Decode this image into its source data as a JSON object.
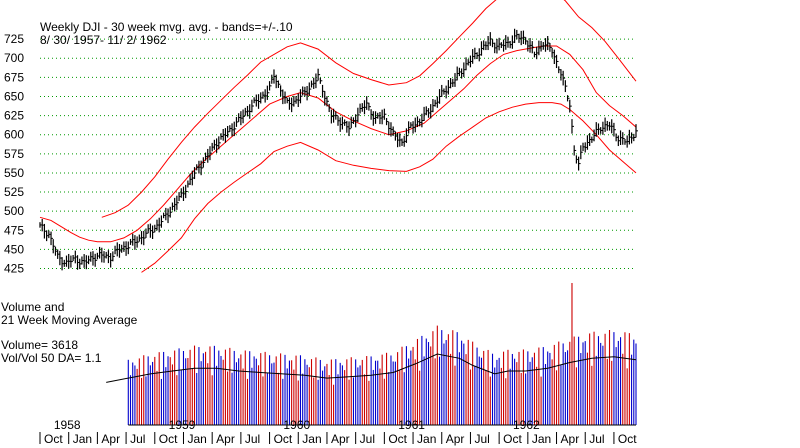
{
  "title": {
    "line1": "Weekly DJI - 30 week mvg. avg. - bands=+/-.10",
    "line2": "8/ 30/ 1957- 11/ 2/ 1962"
  },
  "volume_panel": {
    "label1": "Volume and",
    "label2": "21 Week Moving Average",
    "volume_text": "Volume= 3618",
    "ratio_text": "Vol/Vol 50 DA= 1.1"
  },
  "colors": {
    "price_bars": "#000000",
    "bands": "#ff0000",
    "grid": "#009900",
    "volume_up": "#0000cc",
    "volume_down": "#cc0000",
    "volume_ma": "#000000"
  },
  "chart_data": [
    {
      "type": "line",
      "title": "Weekly DJI - 30 week mvg. avg. - bands=+/-.10",
      "subtitle": "8/ 30/ 1957- 11/ 2/ 1962",
      "ylim": [
        410,
        750
      ],
      "y_ticks": [
        425,
        450,
        475,
        500,
        525,
        550,
        575,
        600,
        625,
        650,
        675,
        700,
        725
      ],
      "grid": true,
      "x_labels": [
        "Oct",
        "Jan",
        "Apr",
        "Jul",
        "Oct",
        "Jan",
        "Apr",
        "Jul",
        "Oct",
        "Jan",
        "Apr",
        "Jul",
        "Oct",
        "Jan",
        "Apr",
        "Jul",
        "Oct",
        "Jan",
        "Apr",
        "Jul",
        "Oct"
      ],
      "year_labels": [
        {
          "year": "1958",
          "week": 9
        },
        {
          "year": "1959",
          "week": 61
        },
        {
          "year": "1960",
          "week": 113
        },
        {
          "year": "1961",
          "week": 165
        },
        {
          "year": "1962",
          "week": 217
        }
      ],
      "weeks": 270,
      "price_close": [
        [
          0,
          480
        ],
        [
          4,
          470
        ],
        [
          8,
          440
        ],
        [
          12,
          432
        ],
        [
          16,
          438
        ],
        [
          20,
          432
        ],
        [
          24,
          440
        ],
        [
          28,
          442
        ],
        [
          32,
          440
        ],
        [
          36,
          450
        ],
        [
          40,
          455
        ],
        [
          44,
          462
        ],
        [
          48,
          470
        ],
        [
          52,
          478
        ],
        [
          56,
          490
        ],
        [
          60,
          505
        ],
        [
          64,
          520
        ],
        [
          68,
          540
        ],
        [
          72,
          558
        ],
        [
          76,
          572
        ],
        [
          80,
          590
        ],
        [
          84,
          600
        ],
        [
          88,
          612
        ],
        [
          92,
          625
        ],
        [
          96,
          638
        ],
        [
          100,
          648
        ],
        [
          104,
          660
        ],
        [
          106,
          678
        ],
        [
          108,
          665
        ],
        [
          112,
          640
        ],
        [
          116,
          645
        ],
        [
          120,
          655
        ],
        [
          124,
          668
        ],
        [
          126,
          675
        ],
        [
          128,
          660
        ],
        [
          132,
          625
        ],
        [
          136,
          618
        ],
        [
          140,
          608
        ],
        [
          144,
          628
        ],
        [
          148,
          640
        ],
        [
          152,
          620
        ],
        [
          156,
          625
        ],
        [
          160,
          600
        ],
        [
          164,
          590
        ],
        [
          168,
          610
        ],
        [
          172,
          618
        ],
        [
          176,
          630
        ],
        [
          180,
          645
        ],
        [
          184,
          660
        ],
        [
          188,
          672
        ],
        [
          192,
          688
        ],
        [
          196,
          700
        ],
        [
          200,
          712
        ],
        [
          204,
          722
        ],
        [
          208,
          715
        ],
        [
          212,
          720
        ],
        [
          216,
          728
        ],
        [
          220,
          725
        ],
        [
          224,
          705
        ],
        [
          228,
          720
        ],
        [
          232,
          710
        ],
        [
          236,
          680
        ],
        [
          240,
          640
        ],
        [
          242,
          580
        ],
        [
          244,
          560
        ],
        [
          246,
          585
        ],
        [
          250,
          595
        ],
        [
          254,
          610
        ],
        [
          258,
          612
        ],
        [
          262,
          596
        ],
        [
          266,
          590
        ],
        [
          270,
          605
        ]
      ],
      "ma_center": [
        [
          0,
          492
        ],
        [
          5,
          488
        ],
        [
          10,
          479
        ],
        [
          14,
          472
        ],
        [
          18,
          466
        ],
        [
          22,
          462
        ],
        [
          26,
          460
        ],
        [
          32,
          460
        ],
        [
          38,
          465
        ],
        [
          44,
          475
        ],
        [
          50,
          490
        ],
        [
          56,
          508
        ],
        [
          62,
          528
        ],
        [
          68,
          548
        ],
        [
          74,
          565
        ],
        [
          80,
          580
        ],
        [
          86,
          595
        ],
        [
          92,
          610
        ],
        [
          98,
          625
        ],
        [
          104,
          640
        ],
        [
          112,
          650
        ],
        [
          118,
          655
        ],
        [
          126,
          648
        ],
        [
          134,
          630
        ],
        [
          142,
          618
        ],
        [
          150,
          608
        ],
        [
          158,
          600
        ],
        [
          166,
          605
        ],
        [
          174,
          615
        ],
        [
          180,
          630
        ],
        [
          186,
          645
        ],
        [
          192,
          660
        ],
        [
          198,
          678
        ],
        [
          204,
          693
        ],
        [
          210,
          705
        ],
        [
          216,
          710
        ],
        [
          222,
          713
        ],
        [
          228,
          716
        ],
        [
          234,
          716
        ],
        [
          240,
          705
        ],
        [
          246,
          685
        ],
        [
          252,
          655
        ],
        [
          258,
          638
        ],
        [
          264,
          625
        ],
        [
          270,
          610
        ]
      ],
      "upper_band": [
        [
          28,
          492
        ],
        [
          34,
          498
        ],
        [
          40,
          508
        ],
        [
          46,
          525
        ],
        [
          52,
          545
        ],
        [
          58,
          568
        ],
        [
          64,
          590
        ],
        [
          70,
          610
        ],
        [
          76,
          628
        ],
        [
          82,
          645
        ],
        [
          88,
          662
        ],
        [
          94,
          678
        ],
        [
          100,
          695
        ],
        [
          106,
          705
        ],
        [
          112,
          715
        ],
        [
          118,
          720
        ],
        [
          126,
          712
        ],
        [
          134,
          694
        ],
        [
          142,
          680
        ],
        [
          150,
          672
        ],
        [
          158,
          665
        ],
        [
          166,
          668
        ],
        [
          172,
          677
        ],
        [
          178,
          693
        ],
        [
          184,
          710
        ],
        [
          190,
          728
        ],
        [
          196,
          746
        ],
        [
          202,
          765
        ],
        [
          208,
          780
        ],
        [
          214,
          790
        ],
        [
          220,
          795
        ],
        [
          226,
          795
        ],
        [
          232,
          790
        ],
        [
          238,
          775
        ],
        [
          244,
          754
        ],
        [
          250,
          740
        ],
        [
          256,
          722
        ],
        [
          262,
          700
        ],
        [
          270,
          670
        ]
      ],
      "lower_band": [
        [
          46,
          420
        ],
        [
          52,
          432
        ],
        [
          58,
          448
        ],
        [
          64,
          465
        ],
        [
          70,
          490
        ],
        [
          76,
          510
        ],
        [
          82,
          525
        ],
        [
          88,
          538
        ],
        [
          94,
          550
        ],
        [
          100,
          562
        ],
        [
          106,
          578
        ],
        [
          112,
          585
        ],
        [
          118,
          590
        ],
        [
          126,
          580
        ],
        [
          134,
          566
        ],
        [
          142,
          560
        ],
        [
          150,
          556
        ],
        [
          158,
          553
        ],
        [
          166,
          552
        ],
        [
          172,
          558
        ],
        [
          178,
          568
        ],
        [
          184,
          585
        ],
        [
          190,
          598
        ],
        [
          196,
          610
        ],
        [
          202,
          622
        ],
        [
          208,
          630
        ],
        [
          214,
          636
        ],
        [
          220,
          640
        ],
        [
          226,
          642
        ],
        [
          232,
          642
        ],
        [
          236,
          640
        ],
        [
          240,
          633
        ],
        [
          246,
          618
        ],
        [
          252,
          600
        ],
        [
          258,
          580
        ],
        [
          264,
          565
        ],
        [
          270,
          550
        ]
      ]
    },
    {
      "type": "bar",
      "title": "Volume and 21 Week Moving Average",
      "grid": false,
      "volume_max": 100,
      "volume_level_start": 40,
      "volume_ma": [
        [
          30,
          30
        ],
        [
          40,
          33
        ],
        [
          50,
          36
        ],
        [
          60,
          38
        ],
        [
          70,
          40
        ],
        [
          80,
          40
        ],
        [
          90,
          38
        ],
        [
          100,
          37
        ],
        [
          110,
          36
        ],
        [
          120,
          35
        ],
        [
          130,
          33
        ],
        [
          140,
          34
        ],
        [
          150,
          35
        ],
        [
          160,
          37
        ],
        [
          170,
          43
        ],
        [
          180,
          50
        ],
        [
          190,
          47
        ],
        [
          196,
          42
        ],
        [
          206,
          36
        ],
        [
          212,
          38
        ],
        [
          220,
          38
        ],
        [
          230,
          40
        ],
        [
          240,
          44
        ],
        [
          250,
          47
        ],
        [
          260,
          48
        ],
        [
          270,
          46
        ]
      ],
      "volume_spike": {
        "week": 241,
        "value": 100
      }
    }
  ]
}
